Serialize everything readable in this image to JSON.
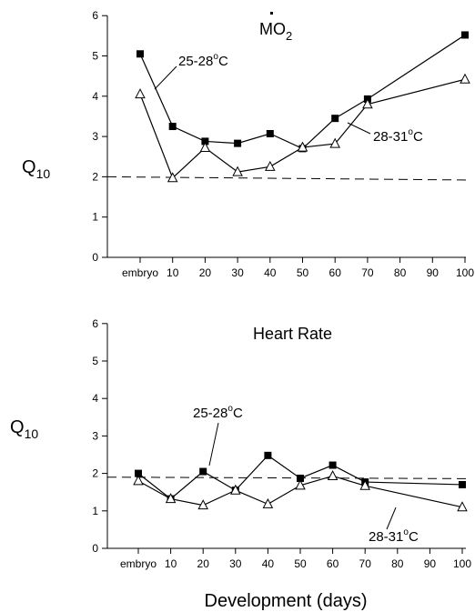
{
  "xlabel": "Development (days)",
  "chart_data": [
    {
      "type": "line",
      "panel": "top",
      "title_main": "MO",
      "title_sub": "2",
      "ylabel_main": "Q",
      "ylabel_sub": "10",
      "xlabel": "",
      "x_categories": [
        "embryo",
        "10",
        "20",
        "30",
        "40",
        "50",
        "60",
        "70",
        "80",
        "90",
        "100"
      ],
      "yticks": [
        0,
        1,
        2,
        3,
        4,
        5,
        6
      ],
      "ylim": [
        0,
        6
      ],
      "reference_line": {
        "style": "dashed",
        "start_y": 2.0,
        "end_y": 1.92
      },
      "grid": false,
      "series": [
        {
          "marker": "filled-square",
          "x": [
            "embryo",
            "10",
            "20",
            "30",
            "40",
            "50",
            "60",
            "70",
            "100"
          ],
          "values": [
            5.05,
            3.25,
            2.88,
            2.83,
            3.07,
            2.7,
            3.45,
            3.93,
            5.52
          ]
        },
        {
          "marker": "open-triangle",
          "x": [
            "embryo",
            "10",
            "20",
            "30",
            "40",
            "50",
            "60",
            "70",
            "100"
          ],
          "values": [
            4.05,
            1.97,
            2.72,
            2.12,
            2.25,
            2.73,
            2.82,
            3.8,
            4.42
          ]
        }
      ],
      "annotations": [
        {
          "text_main": "25-28",
          "text_sup": "o",
          "text_end": "C"
        },
        {
          "text_main": "28-31",
          "text_sup": "o",
          "text_end": "C"
        }
      ]
    },
    {
      "type": "line",
      "panel": "bottom",
      "title": "Heart Rate",
      "ylabel_main": "Q",
      "ylabel_sub": "10",
      "xlabel": "Development (days)",
      "x_categories": [
        "embryo",
        "10",
        "20",
        "30",
        "40",
        "50",
        "60",
        "70",
        "80",
        "90",
        "100"
      ],
      "yticks": [
        0,
        1,
        2,
        3,
        4,
        5,
        6
      ],
      "ylim": [
        0,
        6
      ],
      "reference_line": {
        "style": "dashed",
        "start_y": 1.9,
        "end_y": 1.86
      },
      "grid": false,
      "series": [
        {
          "marker": "filled-square",
          "x": [
            "embryo",
            "10",
            "20",
            "30",
            "40",
            "50",
            "60",
            "70",
            "100"
          ],
          "values": [
            2.0,
            1.32,
            2.05,
            1.55,
            2.48,
            1.87,
            2.22,
            1.77,
            1.7
          ]
        },
        {
          "marker": "open-triangle",
          "x": [
            "embryo",
            "10",
            "20",
            "30",
            "40",
            "50",
            "60",
            "70",
            "100"
          ],
          "values": [
            1.8,
            1.32,
            1.15,
            1.55,
            1.18,
            1.68,
            1.93,
            1.67,
            1.1
          ]
        }
      ],
      "annotations": [
        {
          "text_main": "25-28",
          "text_sup": "o",
          "text_end": "C"
        },
        {
          "text_main": "28-31",
          "text_sup": "o",
          "text_end": "C"
        }
      ]
    }
  ]
}
